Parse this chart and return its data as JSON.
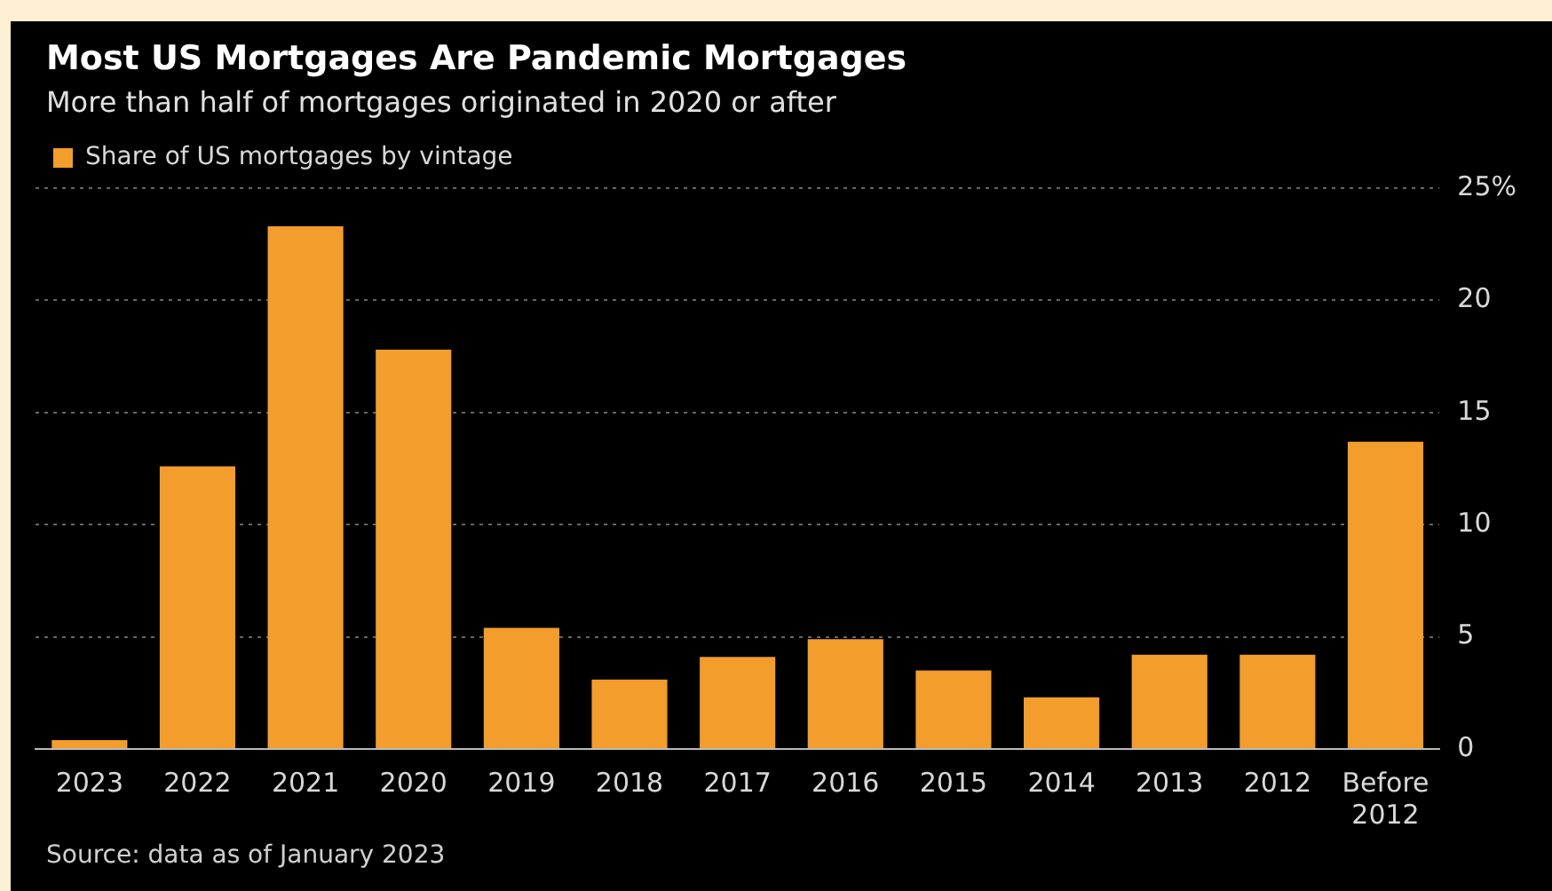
{
  "chart_data": {
    "type": "bar",
    "title": "Most US Mortgages Are Pandemic Mortgages",
    "subtitle": "More than half of mortgages originated in 2020 or after",
    "categories": [
      "2023",
      "2022",
      "2021",
      "2020",
      "2019",
      "2018",
      "2017",
      "2016",
      "2015",
      "2014",
      "2013",
      "2012",
      "Before 2012"
    ],
    "series": [
      {
        "name": "Share of US mortgages by vintage",
        "color": "#f29d2c",
        "values": [
          0.4,
          12.6,
          23.3,
          17.8,
          5.4,
          3.1,
          4.1,
          4.9,
          3.5,
          2.3,
          4.2,
          4.2,
          13.7
        ]
      }
    ],
    "ylim": [
      0,
      25
    ],
    "yticks": [
      0,
      5,
      10,
      15,
      20,
      {
        "value": 25,
        "label": "25%"
      }
    ],
    "grid": "y",
    "legend": "top left",
    "annotations": [
      "Source: data as of January 2023"
    ]
  }
}
